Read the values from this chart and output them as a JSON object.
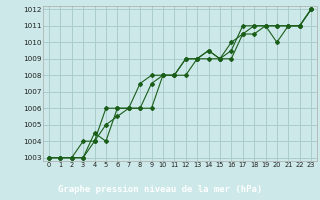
{
  "title": "Graphe pression niveau de la mer (hPa)",
  "bg_color": "#cce8e8",
  "plot_bg": "#cce8e8",
  "label_bg": "#2e6b5e",
  "label_fg": "#ffffff",
  "grid_color": "#aacccc",
  "line_color": "#1a5e1a",
  "xlim": [
    -0.5,
    23.5
  ],
  "ylim": [
    1002.8,
    1012.2
  ],
  "xtick_labels": [
    "0",
    "1",
    "2",
    "3",
    "4",
    "5",
    "6",
    "7",
    "8",
    "9",
    "10",
    "11",
    "12",
    "13",
    "14",
    "15",
    "16",
    "17",
    "18",
    "19",
    "20",
    "21",
    "22",
    "23"
  ],
  "yticks": [
    1003,
    1004,
    1005,
    1006,
    1007,
    1008,
    1009,
    1010,
    1011,
    1012
  ],
  "series": [
    [
      1003.0,
      1003.0,
      1003.0,
      1003.0,
      1004.5,
      1004.0,
      1006.0,
      1006.0,
      1007.5,
      1008.0,
      1008.0,
      1008.0,
      1009.0,
      1009.0,
      1009.5,
      1009.0,
      1009.5,
      1011.0,
      1011.0,
      1011.0,
      1011.0,
      1011.0,
      1011.0,
      1012.0
    ],
    [
      1003.0,
      1003.0,
      1003.0,
      1004.0,
      1004.0,
      1006.0,
      1006.0,
      1006.0,
      1006.0,
      1007.5,
      1008.0,
      1008.0,
      1008.0,
      1009.0,
      1009.5,
      1009.0,
      1010.0,
      1010.5,
      1010.5,
      1011.0,
      1010.0,
      1011.0,
      1011.0,
      1012.0
    ],
    [
      1003.0,
      1003.0,
      1003.0,
      1003.0,
      1004.0,
      1005.0,
      1005.5,
      1006.0,
      1006.0,
      1006.0,
      1008.0,
      1008.0,
      1009.0,
      1009.0,
      1009.0,
      1009.0,
      1009.0,
      1010.5,
      1011.0,
      1011.0,
      1011.0,
      1011.0,
      1011.0,
      1012.0
    ]
  ]
}
